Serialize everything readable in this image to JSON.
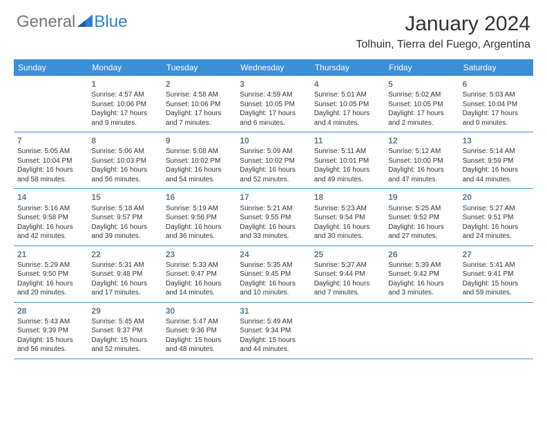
{
  "brand": {
    "part1": "General",
    "part2": "Blue"
  },
  "title": "January 2024",
  "location": "Tolhuin, Tierra del Fuego, Argentina",
  "colors": {
    "header_bg": "#3b8fd6",
    "header_text": "#ffffff",
    "daynum": "#5b7a94",
    "rule": "#3b8fd6",
    "body_text": "#333333"
  },
  "day_names": [
    "Sunday",
    "Monday",
    "Tuesday",
    "Wednesday",
    "Thursday",
    "Friday",
    "Saturday"
  ],
  "weeks": [
    [
      null,
      {
        "n": "1",
        "sunrise": "Sunrise: 4:57 AM",
        "sunset": "Sunset: 10:06 PM",
        "daylight": "Daylight: 17 hours and 9 minutes."
      },
      {
        "n": "2",
        "sunrise": "Sunrise: 4:58 AM",
        "sunset": "Sunset: 10:06 PM",
        "daylight": "Daylight: 17 hours and 7 minutes."
      },
      {
        "n": "3",
        "sunrise": "Sunrise: 4:59 AM",
        "sunset": "Sunset: 10:05 PM",
        "daylight": "Daylight: 17 hours and 6 minutes."
      },
      {
        "n": "4",
        "sunrise": "Sunrise: 5:01 AM",
        "sunset": "Sunset: 10:05 PM",
        "daylight": "Daylight: 17 hours and 4 minutes."
      },
      {
        "n": "5",
        "sunrise": "Sunrise: 5:02 AM",
        "sunset": "Sunset: 10:05 PM",
        "daylight": "Daylight: 17 hours and 2 minutes."
      },
      {
        "n": "6",
        "sunrise": "Sunrise: 5:03 AM",
        "sunset": "Sunset: 10:04 PM",
        "daylight": "Daylight: 17 hours and 0 minutes."
      }
    ],
    [
      {
        "n": "7",
        "sunrise": "Sunrise: 5:05 AM",
        "sunset": "Sunset: 10:04 PM",
        "daylight": "Daylight: 16 hours and 58 minutes."
      },
      {
        "n": "8",
        "sunrise": "Sunrise: 5:06 AM",
        "sunset": "Sunset: 10:03 PM",
        "daylight": "Daylight: 16 hours and 56 minutes."
      },
      {
        "n": "9",
        "sunrise": "Sunrise: 5:08 AM",
        "sunset": "Sunset: 10:02 PM",
        "daylight": "Daylight: 16 hours and 54 minutes."
      },
      {
        "n": "10",
        "sunrise": "Sunrise: 5:09 AM",
        "sunset": "Sunset: 10:02 PM",
        "daylight": "Daylight: 16 hours and 52 minutes."
      },
      {
        "n": "11",
        "sunrise": "Sunrise: 5:11 AM",
        "sunset": "Sunset: 10:01 PM",
        "daylight": "Daylight: 16 hours and 49 minutes."
      },
      {
        "n": "12",
        "sunrise": "Sunrise: 5:12 AM",
        "sunset": "Sunset: 10:00 PM",
        "daylight": "Daylight: 16 hours and 47 minutes."
      },
      {
        "n": "13",
        "sunrise": "Sunrise: 5:14 AM",
        "sunset": "Sunset: 9:59 PM",
        "daylight": "Daylight: 16 hours and 44 minutes."
      }
    ],
    [
      {
        "n": "14",
        "sunrise": "Sunrise: 5:16 AM",
        "sunset": "Sunset: 9:58 PM",
        "daylight": "Daylight: 16 hours and 42 minutes."
      },
      {
        "n": "15",
        "sunrise": "Sunrise: 5:18 AM",
        "sunset": "Sunset: 9:57 PM",
        "daylight": "Daylight: 16 hours and 39 minutes."
      },
      {
        "n": "16",
        "sunrise": "Sunrise: 5:19 AM",
        "sunset": "Sunset: 9:56 PM",
        "daylight": "Daylight: 16 hours and 36 minutes."
      },
      {
        "n": "17",
        "sunrise": "Sunrise: 5:21 AM",
        "sunset": "Sunset: 9:55 PM",
        "daylight": "Daylight: 16 hours and 33 minutes."
      },
      {
        "n": "18",
        "sunrise": "Sunrise: 5:23 AM",
        "sunset": "Sunset: 9:54 PM",
        "daylight": "Daylight: 16 hours and 30 minutes."
      },
      {
        "n": "19",
        "sunrise": "Sunrise: 5:25 AM",
        "sunset": "Sunset: 9:52 PM",
        "daylight": "Daylight: 16 hours and 27 minutes."
      },
      {
        "n": "20",
        "sunrise": "Sunrise: 5:27 AM",
        "sunset": "Sunset: 9:51 PM",
        "daylight": "Daylight: 16 hours and 24 minutes."
      }
    ],
    [
      {
        "n": "21",
        "sunrise": "Sunrise: 5:29 AM",
        "sunset": "Sunset: 9:50 PM",
        "daylight": "Daylight: 16 hours and 20 minutes."
      },
      {
        "n": "22",
        "sunrise": "Sunrise: 5:31 AM",
        "sunset": "Sunset: 9:48 PM",
        "daylight": "Daylight: 16 hours and 17 minutes."
      },
      {
        "n": "23",
        "sunrise": "Sunrise: 5:33 AM",
        "sunset": "Sunset: 9:47 PM",
        "daylight": "Daylight: 16 hours and 14 minutes."
      },
      {
        "n": "24",
        "sunrise": "Sunrise: 5:35 AM",
        "sunset": "Sunset: 9:45 PM",
        "daylight": "Daylight: 16 hours and 10 minutes."
      },
      {
        "n": "25",
        "sunrise": "Sunrise: 5:37 AM",
        "sunset": "Sunset: 9:44 PM",
        "daylight": "Daylight: 16 hours and 7 minutes."
      },
      {
        "n": "26",
        "sunrise": "Sunrise: 5:39 AM",
        "sunset": "Sunset: 9:42 PM",
        "daylight": "Daylight: 16 hours and 3 minutes."
      },
      {
        "n": "27",
        "sunrise": "Sunrise: 5:41 AM",
        "sunset": "Sunset: 9:41 PM",
        "daylight": "Daylight: 15 hours and 59 minutes."
      }
    ],
    [
      {
        "n": "28",
        "sunrise": "Sunrise: 5:43 AM",
        "sunset": "Sunset: 9:39 PM",
        "daylight": "Daylight: 15 hours and 56 minutes."
      },
      {
        "n": "29",
        "sunrise": "Sunrise: 5:45 AM",
        "sunset": "Sunset: 9:37 PM",
        "daylight": "Daylight: 15 hours and 52 minutes."
      },
      {
        "n": "30",
        "sunrise": "Sunrise: 5:47 AM",
        "sunset": "Sunset: 9:36 PM",
        "daylight": "Daylight: 15 hours and 48 minutes."
      },
      {
        "n": "31",
        "sunrise": "Sunrise: 5:49 AM",
        "sunset": "Sunset: 9:34 PM",
        "daylight": "Daylight: 15 hours and 44 minutes."
      },
      null,
      null,
      null
    ]
  ]
}
